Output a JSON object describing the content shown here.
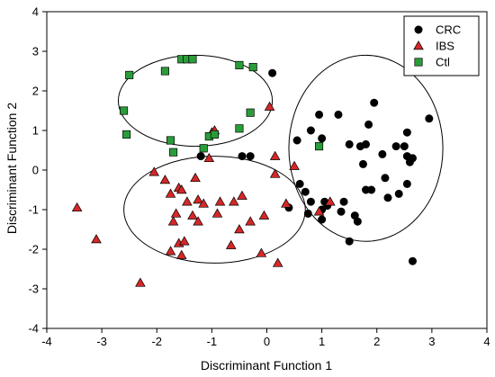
{
  "chart_data": {
    "type": "scatter",
    "xlabel": "Discriminant Function 1",
    "ylabel": "Discriminant Function 2",
    "xlim": [
      -4,
      4
    ],
    "ylim": [
      -4,
      4
    ],
    "xticks": [
      -4,
      -3,
      -2,
      -1,
      0,
      1,
      2,
      3,
      4
    ],
    "yticks": [
      -4,
      -3,
      -2,
      -1,
      0,
      1,
      2,
      3,
      4
    ],
    "grid": false,
    "legend_position": "top-right",
    "series": [
      {
        "name": "CRC",
        "marker": "circle",
        "color": "#000000",
        "points": [
          [
            0.1,
            2.45
          ],
          [
            -1.15,
            0.55
          ],
          [
            -0.45,
            0.35
          ],
          [
            -0.3,
            0.35
          ],
          [
            0.4,
            -0.95
          ],
          [
            0.6,
            -0.35
          ],
          [
            0.7,
            -0.55
          ],
          [
            0.8,
            -0.8
          ],
          [
            0.75,
            -1.1
          ],
          [
            0.55,
            0.75
          ],
          [
            0.8,
            1.0
          ],
          [
            0.95,
            1.4
          ],
          [
            1.0,
            0.8
          ],
          [
            1.0,
            -1.0
          ],
          [
            1.0,
            -1.25
          ],
          [
            1.1,
            -0.9
          ],
          [
            1.3,
            1.4
          ],
          [
            1.35,
            -1.05
          ],
          [
            1.4,
            -0.8
          ],
          [
            1.5,
            -1.8
          ],
          [
            1.5,
            0.65
          ],
          [
            1.6,
            -1.15
          ],
          [
            1.65,
            -1.3
          ],
          [
            1.7,
            0.6
          ],
          [
            1.75,
            0.15
          ],
          [
            1.8,
            0.65
          ],
          [
            1.8,
            -0.5
          ],
          [
            1.85,
            1.15
          ],
          [
            1.9,
            -0.5
          ],
          [
            1.95,
            1.7
          ],
          [
            2.1,
            0.4
          ],
          [
            2.15,
            -0.2
          ],
          [
            2.2,
            -0.7
          ],
          [
            2.35,
            0.6
          ],
          [
            2.4,
            -0.6
          ],
          [
            2.5,
            0.6
          ],
          [
            2.55,
            0.35
          ],
          [
            2.55,
            0.95
          ],
          [
            2.55,
            -0.35
          ],
          [
            2.6,
            0.2
          ],
          [
            2.65,
            0.3
          ],
          [
            2.95,
            1.3
          ],
          [
            2.65,
            -2.3
          ],
          [
            1.05,
            -0.8
          ],
          [
            -1.2,
            0.35
          ]
        ]
      },
      {
        "name": "IBS",
        "marker": "triangle",
        "color": "#d62728",
        "points": [
          [
            -3.45,
            -0.95
          ],
          [
            -3.1,
            -1.75
          ],
          [
            -2.3,
            -2.85
          ],
          [
            -2.05,
            -0.05
          ],
          [
            -1.85,
            -0.25
          ],
          [
            -1.75,
            -2.05
          ],
          [
            -1.75,
            -0.6
          ],
          [
            -1.7,
            -1.3
          ],
          [
            -1.65,
            -1.1
          ],
          [
            -1.6,
            -0.45
          ],
          [
            -1.6,
            -1.85
          ],
          [
            -1.55,
            -2.15
          ],
          [
            -1.55,
            -0.5
          ],
          [
            -1.5,
            -1.8
          ],
          [
            -1.45,
            -0.8
          ],
          [
            -1.35,
            -1.15
          ],
          [
            -1.3,
            -0.2
          ],
          [
            -1.25,
            -1.3
          ],
          [
            -1.25,
            -0.75
          ],
          [
            -1.15,
            -0.85
          ],
          [
            -1.05,
            0.3
          ],
          [
            -1.0,
            0.95
          ],
          [
            -0.95,
            1.0
          ],
          [
            -0.9,
            -1.1
          ],
          [
            -0.85,
            -0.8
          ],
          [
            -0.65,
            -1.9
          ],
          [
            -0.6,
            -0.8
          ],
          [
            -0.5,
            -1.5
          ],
          [
            -0.45,
            -0.65
          ],
          [
            -0.3,
            -1.3
          ],
          [
            -0.1,
            -2.1
          ],
          [
            -0.05,
            -1.15
          ],
          [
            0.05,
            1.6
          ],
          [
            0.15,
            -0.1
          ],
          [
            0.2,
            -2.35
          ],
          [
            0.15,
            0.35
          ],
          [
            0.35,
            -0.85
          ],
          [
            0.5,
            0.1
          ],
          [
            0.95,
            -1.05
          ],
          [
            1.15,
            -0.8
          ]
        ]
      },
      {
        "name": "Ctl",
        "marker": "square",
        "color": "#2a9d3a",
        "points": [
          [
            -2.5,
            2.4
          ],
          [
            -2.6,
            1.5
          ],
          [
            -2.55,
            0.9
          ],
          [
            -1.85,
            2.5
          ],
          [
            -1.75,
            0.75
          ],
          [
            -1.7,
            0.45
          ],
          [
            -1.55,
            2.8
          ],
          [
            -1.45,
            2.8
          ],
          [
            -1.35,
            2.8
          ],
          [
            -1.15,
            0.55
          ],
          [
            -1.05,
            0.85
          ],
          [
            -0.95,
            0.9
          ],
          [
            -0.5,
            2.65
          ],
          [
            -0.5,
            1.05
          ],
          [
            -0.3,
            1.45
          ],
          [
            -0.25,
            2.6
          ],
          [
            0.95,
            0.6
          ]
        ]
      }
    ],
    "ellipses": [
      {
        "series": "CRC",
        "cx": 1.8,
        "cy": 0.55,
        "rx": 1.4,
        "ry": 2.35
      },
      {
        "series": "IBS",
        "cx": -0.95,
        "cy": -1.0,
        "rx": 1.65,
        "ry": 1.35
      },
      {
        "series": "Ctl",
        "cx": -1.3,
        "cy": 1.75,
        "rx": 1.4,
        "ry": 1.15
      }
    ]
  }
}
